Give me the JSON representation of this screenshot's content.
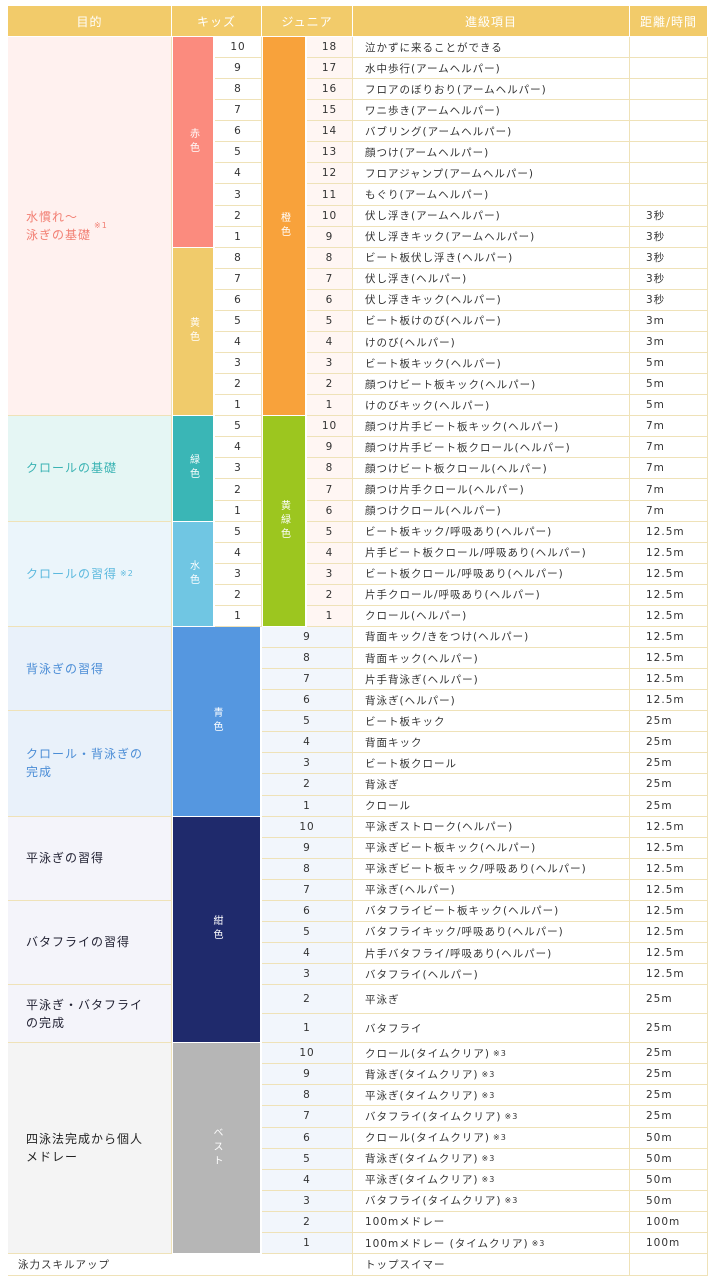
{
  "header": {
    "purpose": "目的",
    "kids": "キッズ",
    "junior": "ジュニア",
    "item": "進級項目",
    "distance": "距離/時間"
  },
  "kids_colors": [
    {
      "label": "赤色",
      "color": "#fb8b7e"
    },
    {
      "label": "黄色",
      "color": "#f0cb6b"
    },
    {
      "label": "緑色",
      "color": "#3ab6b6"
    },
    {
      "label": "水色",
      "color": "#70c6e3"
    },
    {
      "label": "青色",
      "color": "#5597e0"
    },
    {
      "label": "紺色",
      "color": "#1f2a6c"
    },
    {
      "label": "ベスト",
      "color": "#b6b6b6"
    }
  ],
  "junior_colors": [
    {
      "label": "橙色",
      "color": "#f8a23b"
    },
    {
      "label": "黄緑色",
      "color": "#9cc61f"
    }
  ],
  "groups": [
    {
      "purpose": "水慣れ〜\n泳ぎの基礎",
      "note": "※1",
      "color": "#f27f73",
      "bg": "#fff1ef",
      "rows": [
        {
          "kids": 10,
          "junior": 18,
          "item": "泣かずに来ることができる"
        },
        {
          "kids": 9,
          "junior": 17,
          "item": "水中歩行(アームヘルパー)"
        },
        {
          "kids": 8,
          "junior": 16,
          "item": "フロアのぼりおり(アームヘルパー)"
        },
        {
          "kids": 7,
          "junior": 15,
          "item": "ワニ歩き(アームヘルパー)"
        },
        {
          "kids": 6,
          "junior": 14,
          "item": "バブリング(アームヘルパー)"
        },
        {
          "kids": 5,
          "junior": 13,
          "item": "顔つけ(アームヘルパー)"
        },
        {
          "kids": 4,
          "junior": 12,
          "item": "フロアジャンプ(アームヘルパー)"
        },
        {
          "kids": 3,
          "junior": 11,
          "item": "もぐり(アームヘルパー)"
        },
        {
          "kids": 2,
          "junior": 10,
          "item": "伏し浮き(アームヘルパー)",
          "distance": "3秒"
        },
        {
          "kids": 1,
          "junior": 9,
          "item": "伏し浮きキック(アームヘルパー)",
          "distance": "3秒"
        },
        {
          "kids": 8,
          "junior": 8,
          "item": "ビート板伏し浮き(ヘルパー)",
          "distance": "3秒"
        },
        {
          "kids": 7,
          "junior": 7,
          "item": "伏し浮き(ヘルパー)",
          "distance": "3秒"
        },
        {
          "kids": 6,
          "junior": 6,
          "item": "伏し浮きキック(ヘルパー)",
          "distance": "3秒"
        },
        {
          "kids": 5,
          "junior": 5,
          "item": "ビート板けのび(ヘルパー)",
          "distance": "3m"
        },
        {
          "kids": 4,
          "junior": 4,
          "item": "けのび(ヘルパー)",
          "distance": "3m"
        },
        {
          "kids": 3,
          "junior": 3,
          "item": "ビート板キック(ヘルパー)",
          "distance": "5m"
        },
        {
          "kids": 2,
          "junior": 2,
          "item": "顔つけビート板キック(ヘルパー)",
          "distance": "5m"
        },
        {
          "kids": 1,
          "junior": 1,
          "item": "けのびキック(ヘルパー)",
          "distance": "5m"
        }
      ]
    },
    {
      "purpose": "クロールの基礎",
      "color": "#3ab3b3",
      "bg": "#e5f6f4",
      "rows": [
        {
          "kids": 5,
          "junior": 10,
          "item": "顔つけ片手ビート板キック(ヘルパー)",
          "distance": "7m"
        },
        {
          "kids": 4,
          "junior": 9,
          "item": "顔つけ片手ビート板クロール(ヘルパー)",
          "distance": "7m"
        },
        {
          "kids": 3,
          "junior": 8,
          "item": "顔つけビート板クロール(ヘルパー)",
          "distance": "7m"
        },
        {
          "kids": 2,
          "junior": 7,
          "item": "顔つけ片手クロール(ヘルパー)",
          "distance": "7m"
        },
        {
          "kids": 1,
          "junior": 6,
          "item": "顔つけクロール(ヘルパー)",
          "distance": "7m"
        }
      ]
    },
    {
      "purpose": "クロールの習得",
      "note": "※2",
      "color": "#5cb9de",
      "bg": "#ebf5fb",
      "rows": [
        {
          "kids": 5,
          "junior": 5,
          "item": "ビート板キック/呼吸あり(ヘルパー)",
          "distance": "12.5m"
        },
        {
          "kids": 4,
          "junior": 4,
          "item": "片手ビート板クロール/呼吸あり(ヘルパー)",
          "distance": "12.5m"
        },
        {
          "kids": 3,
          "junior": 3,
          "item": "ビート板クロール/呼吸あり(ヘルパー)",
          "distance": "12.5m"
        },
        {
          "kids": 2,
          "junior": 2,
          "item": "片手クロール/呼吸あり(ヘルパー)",
          "distance": "12.5m"
        },
        {
          "kids": 1,
          "junior": 1,
          "item": "クロール(ヘルパー)",
          "distance": "12.5m"
        }
      ]
    },
    {
      "purpose": "背泳ぎの習得",
      "color": "#4b8dd6",
      "bg": "#e9f1fa",
      "rows": [
        {
          "level": 9,
          "item": "背面キック/きをつけ(ヘルパー)",
          "distance": "12.5m"
        },
        {
          "level": 8,
          "item": "背面キック(ヘルパー)",
          "distance": "12.5m"
        },
        {
          "level": 7,
          "item": "片手背泳ぎ(ヘルパー)",
          "distance": "12.5m"
        },
        {
          "level": 6,
          "item": "背泳ぎ(ヘルパー)",
          "distance": "12.5m"
        }
      ]
    },
    {
      "purpose": "クロール・背泳ぎの\n完成",
      "color": "#4b8dd6",
      "bg": "#e9f1fa",
      "rows": [
        {
          "level": 5,
          "item": "ビート板キック",
          "distance": "25m"
        },
        {
          "level": 4,
          "item": "背面キック",
          "distance": "25m"
        },
        {
          "level": 3,
          "item": "ビート板クロール",
          "distance": "25m"
        },
        {
          "level": 2,
          "item": "背泳ぎ",
          "distance": "25m"
        },
        {
          "level": 1,
          "item": "クロール",
          "distance": "25m"
        }
      ]
    },
    {
      "purpose": "平泳ぎの習得",
      "color": "#222233",
      "bg": "#f4f4fa",
      "rows": [
        {
          "level": 10,
          "item": "平泳ぎストローク(ヘルパー)",
          "distance": "12.5m"
        },
        {
          "level": 9,
          "item": "平泳ぎビート板キック(ヘルパー)",
          "distance": "12.5m"
        },
        {
          "level": 8,
          "item": "平泳ぎビート板キック/呼吸あり(ヘルパー)",
          "distance": "12.5m"
        },
        {
          "level": 7,
          "item": "平泳ぎ(ヘルパー)",
          "distance": "12.5m"
        }
      ]
    },
    {
      "purpose": "バタフライの習得",
      "color": "#222233",
      "bg": "#f4f4fa",
      "rows": [
        {
          "level": 6,
          "item": "バタフライビート板キック(ヘルパー)",
          "distance": "12.5m"
        },
        {
          "level": 5,
          "item": "バタフライキック/呼吸あり(ヘルパー)",
          "distance": "12.5m"
        },
        {
          "level": 4,
          "item": "片手バタフライ/呼吸あり(ヘルパー)",
          "distance": "12.5m"
        },
        {
          "level": 3,
          "item": "バタフライ(ヘルパー)",
          "distance": "12.5m"
        }
      ]
    },
    {
      "purpose": "平泳ぎ・バタフライ\nの完成",
      "color": "#222233",
      "bg": "#f4f4fa",
      "rows": [
        {
          "level": 2,
          "item": "平泳ぎ",
          "distance": "25m"
        },
        {
          "level": 1,
          "item": "バタフライ",
          "distance": "25m"
        }
      ]
    },
    {
      "purpose": "四泳法完成から個人\nメドレー",
      "color": "#222222",
      "bg": "#f4f4f4",
      "rows": [
        {
          "level": 10,
          "item": "クロール(タイムクリア)",
          "note": "※3",
          "distance": "25m"
        },
        {
          "level": 9,
          "item": "背泳ぎ(タイムクリア)",
          "note": "※3",
          "distance": "25m"
        },
        {
          "level": 8,
          "item": "平泳ぎ(タイムクリア)",
          "note": "※3",
          "distance": "25m"
        },
        {
          "level": 7,
          "item": "バタフライ(タイムクリア)",
          "note": "※3",
          "distance": "25m"
        },
        {
          "level": 6,
          "item": "クロール(タイムクリア)",
          "note": "※3",
          "distance": "50m"
        },
        {
          "level": 5,
          "item": "背泳ぎ(タイムクリア)",
          "note": "※3",
          "distance": "50m"
        },
        {
          "level": 4,
          "item": "平泳ぎ(タイムクリア)",
          "note": "※3",
          "distance": "50m"
        },
        {
          "level": 3,
          "item": "バタフライ(タイムクリア)",
          "note": "※3",
          "distance": "50m"
        },
        {
          "level": 2,
          "item": "100mメドレー",
          "distance": "100m"
        },
        {
          "level": 1,
          "item": "100mメドレー (タイムクリア)",
          "note": "※3",
          "distance": "100m"
        }
      ]
    }
  ],
  "footer": {
    "purpose": "泳力スキルアップ",
    "item": "トップスイマー"
  }
}
